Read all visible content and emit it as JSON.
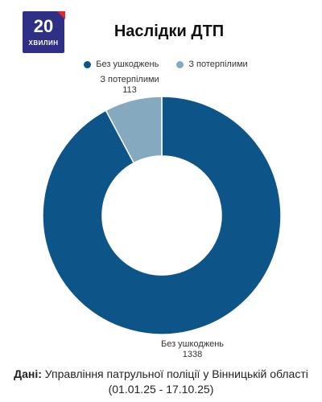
{
  "logo": {
    "number": "20",
    "word": "ХВИЛИН"
  },
  "chart_data": {
    "type": "pie",
    "title": "Наслідки ДТП",
    "legend_position": "top",
    "categories": [
      "Без ушкоджень",
      "З потерпілими"
    ],
    "values": [
      1338,
      113
    ],
    "colors": [
      "#0d5589",
      "#85a9bf"
    ],
    "data_labels": [
      {
        "name": "Без ушкоджень",
        "value": "1338"
      },
      {
        "name": "З потерпілими",
        "value": "113"
      }
    ]
  },
  "footer": {
    "label": "Дані:",
    "text": "Управління патрульної поліції у Вінницькій області (01.01.25 - 17.10.25)"
  }
}
